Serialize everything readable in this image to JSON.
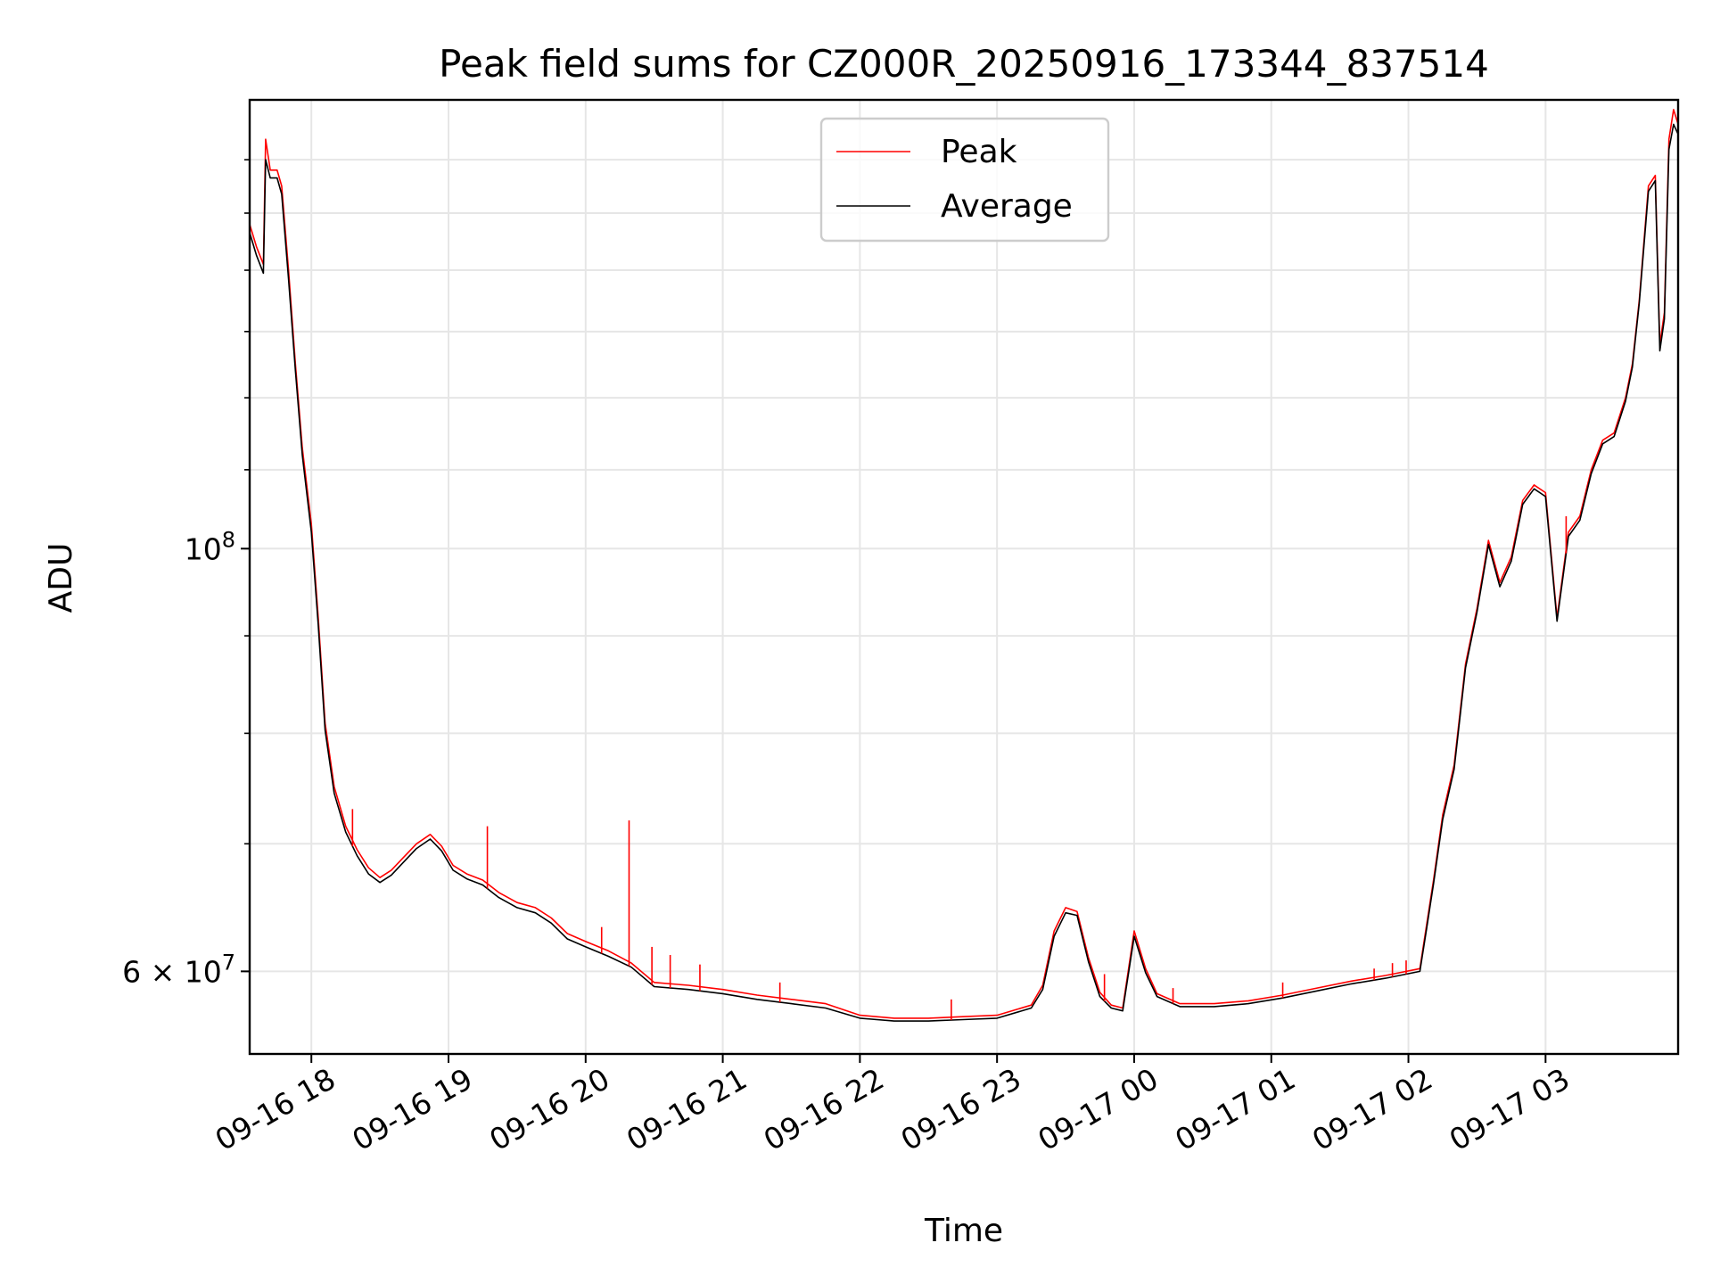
{
  "chart_data": {
    "type": "line",
    "title": "Peak field sums for CZ000R_20250916_173344_837514",
    "xlabel": "Time",
    "ylabel": "ADU",
    "yscale": "log",
    "ylim": [
      54300000,
      172000000
    ],
    "xlim": [
      "09-16 17:33",
      "09-17 03:58"
    ],
    "x_ticks": [
      "09-16 18",
      "09-16 19",
      "09-16 20",
      "09-16 21",
      "09-16 22",
      "09-16 23",
      "09-17 00",
      "09-17 01",
      "09-17 02",
      "09-17 03"
    ],
    "y_ticks": [
      {
        "value": 100000000,
        "label": "10",
        "exp": "8"
      },
      {
        "value": 60000000,
        "label": "6 × 10",
        "exp": "7"
      }
    ],
    "grid": true,
    "legend_position": "top-center",
    "colors": {
      "peak": "#ff0000",
      "average": "#000000",
      "grid": "#e6e6e6"
    },
    "series": [
      {
        "name": "Peak",
        "points": [
          [
            "09-16 17:33",
            148000000
          ],
          [
            "09-16 17:36",
            144000000
          ],
          [
            "09-16 17:39",
            141000000
          ],
          [
            "09-16 17:40",
            164000000
          ],
          [
            "09-16 17:42",
            158000000
          ],
          [
            "09-16 17:45",
            158000000
          ],
          [
            "09-16 17:47",
            155000000
          ],
          [
            "09-16 17:50",
            140000000
          ],
          [
            "09-16 17:53",
            125000000
          ],
          [
            "09-16 17:56",
            113000000
          ],
          [
            "09-16 18:00",
            103000000
          ],
          [
            "09-16 18:03",
            92000000
          ],
          [
            "09-16 18:06",
            81000000
          ],
          [
            "09-16 18:10",
            75000000
          ],
          [
            "09-16 18:15",
            71500000
          ],
          [
            "09-16 18:20",
            69500000
          ],
          [
            "09-16 18:25",
            68000000
          ],
          [
            "09-16 18:30",
            67200000
          ],
          [
            "09-16 18:35",
            67800000
          ],
          [
            "09-16 18:40",
            68800000
          ],
          [
            "09-16 18:46",
            70000000
          ],
          [
            "09-16 18:52",
            70800000
          ],
          [
            "09-16 18:57",
            69800000
          ],
          [
            "09-16 19:02",
            68200000
          ],
          [
            "09-16 19:08",
            67500000
          ],
          [
            "09-16 19:15",
            67000000
          ],
          [
            "09-16 19:22",
            66000000
          ],
          [
            "09-16 19:30",
            65200000
          ],
          [
            "09-16 19:38",
            64800000
          ],
          [
            "09-16 19:45",
            64000000
          ],
          [
            "09-16 19:52",
            62800000
          ],
          [
            "09-16 20:00",
            62200000
          ],
          [
            "09-16 20:10",
            61500000
          ],
          [
            "09-16 20:20",
            60600000
          ],
          [
            "09-16 20:30",
            59200000
          ],
          [
            "09-16 20:45",
            59000000
          ],
          [
            "09-16 21:00",
            58700000
          ],
          [
            "09-16 21:15",
            58300000
          ],
          [
            "09-16 21:30",
            58000000
          ],
          [
            "09-16 21:45",
            57700000
          ],
          [
            "09-16 22:00",
            56900000
          ],
          [
            "09-16 22:15",
            56700000
          ],
          [
            "09-16 22:30",
            56700000
          ],
          [
            "09-16 22:45",
            56800000
          ],
          [
            "09-16 23:00",
            56900000
          ],
          [
            "09-16 23:15",
            57600000
          ],
          [
            "09-16 23:20",
            59000000
          ],
          [
            "09-16 23:25",
            63000000
          ],
          [
            "09-16 23:30",
            64800000
          ],
          [
            "09-16 23:35",
            64500000
          ],
          [
            "09-16 23:40",
            61000000
          ],
          [
            "09-16 23:45",
            58500000
          ],
          [
            "09-16 23:50",
            57600000
          ],
          [
            "09-16 23:55",
            57400000
          ],
          [
            "09-17 00:00",
            63000000
          ],
          [
            "09-17 00:05",
            60200000
          ],
          [
            "09-17 00:10",
            58400000
          ],
          [
            "09-17 00:20",
            57700000
          ],
          [
            "09-17 00:35",
            57700000
          ],
          [
            "09-17 00:50",
            57900000
          ],
          [
            "09-17 01:05",
            58300000
          ],
          [
            "09-17 01:20",
            58800000
          ],
          [
            "09-17 01:35",
            59300000
          ],
          [
            "09-17 01:50",
            59700000
          ],
          [
            "09-17 02:05",
            60200000
          ],
          [
            "09-17 02:08",
            63500000
          ],
          [
            "09-17 02:11",
            67000000
          ],
          [
            "09-17 02:15",
            72500000
          ],
          [
            "09-17 02:20",
            77000000
          ],
          [
            "09-17 02:25",
            87000000
          ],
          [
            "09-17 02:30",
            93000000
          ],
          [
            "09-17 02:35",
            101000000
          ],
          [
            "09-17 02:40",
            96000000
          ],
          [
            "09-17 02:45",
            99000000
          ],
          [
            "09-17 02:50",
            106000000
          ],
          [
            "09-17 02:55",
            108000000
          ],
          [
            "09-17 03:00",
            107000000
          ],
          [
            "09-17 03:05",
            92000000
          ],
          [
            "09-17 03:10",
            102000000
          ],
          [
            "09-17 03:15",
            104000000
          ],
          [
            "09-17 03:20",
            110000000
          ],
          [
            "09-17 03:25",
            114000000
          ],
          [
            "09-17 03:30",
            115000000
          ],
          [
            "09-17 03:35",
            120000000
          ],
          [
            "09-17 03:38",
            125000000
          ],
          [
            "09-17 03:41",
            135000000
          ],
          [
            "09-17 03:45",
            155000000
          ],
          [
            "09-17 03:48",
            157000000
          ],
          [
            "09-17 03:50",
            128000000
          ],
          [
            "09-17 03:52",
            133000000
          ],
          [
            "09-17 03:54",
            164000000
          ],
          [
            "09-17 03:56",
            170000000
          ],
          [
            "09-17 03:58",
            167000000
          ]
        ]
      },
      {
        "name": "Average",
        "points": [
          [
            "09-16 17:33",
            146500000
          ],
          [
            "09-16 17:36",
            142500000
          ],
          [
            "09-16 17:39",
            139500000
          ],
          [
            "09-16 17:40",
            160000000
          ],
          [
            "09-16 17:42",
            156500000
          ],
          [
            "09-16 17:45",
            156500000
          ],
          [
            "09-16 17:47",
            153500000
          ],
          [
            "09-16 17:50",
            138500000
          ],
          [
            "09-16 17:53",
            124000000
          ],
          [
            "09-16 17:56",
            112000000
          ],
          [
            "09-16 18:00",
            102000000
          ],
          [
            "09-16 18:03",
            91200000
          ],
          [
            "09-16 18:06",
            80300000
          ],
          [
            "09-16 18:10",
            74400000
          ],
          [
            "09-16 18:15",
            71000000
          ],
          [
            "09-16 18:20",
            69000000
          ],
          [
            "09-16 18:25",
            67500000
          ],
          [
            "09-16 18:30",
            66800000
          ],
          [
            "09-16 18:35",
            67400000
          ],
          [
            "09-16 18:40",
            68400000
          ],
          [
            "09-16 18:46",
            69600000
          ],
          [
            "09-16 18:52",
            70400000
          ],
          [
            "09-16 18:57",
            69400000
          ],
          [
            "09-16 19:02",
            67800000
          ],
          [
            "09-16 19:08",
            67100000
          ],
          [
            "09-16 19:15",
            66600000
          ],
          [
            "09-16 19:22",
            65600000
          ],
          [
            "09-16 19:30",
            64800000
          ],
          [
            "09-16 19:38",
            64400000
          ],
          [
            "09-16 19:45",
            63600000
          ],
          [
            "09-16 19:52",
            62400000
          ],
          [
            "09-16 20:00",
            61800000
          ],
          [
            "09-16 20:10",
            61100000
          ],
          [
            "09-16 20:20",
            60300000
          ],
          [
            "09-16 20:30",
            58900000
          ],
          [
            "09-16 20:45",
            58700000
          ],
          [
            "09-16 21:00",
            58400000
          ],
          [
            "09-16 21:15",
            58000000
          ],
          [
            "09-16 21:30",
            57700000
          ],
          [
            "09-16 21:45",
            57400000
          ],
          [
            "09-16 22:00",
            56700000
          ],
          [
            "09-16 22:15",
            56500000
          ],
          [
            "09-16 22:30",
            56500000
          ],
          [
            "09-16 22:45",
            56600000
          ],
          [
            "09-16 23:00",
            56700000
          ],
          [
            "09-16 23:15",
            57400000
          ],
          [
            "09-16 23:20",
            58700000
          ],
          [
            "09-16 23:25",
            62600000
          ],
          [
            "09-16 23:30",
            64400000
          ],
          [
            "09-16 23:35",
            64200000
          ],
          [
            "09-16 23:40",
            60700000
          ],
          [
            "09-16 23:45",
            58200000
          ],
          [
            "09-16 23:50",
            57400000
          ],
          [
            "09-16 23:55",
            57200000
          ],
          [
            "09-17 00:00",
            62600000
          ],
          [
            "09-17 00:05",
            59900000
          ],
          [
            "09-17 00:10",
            58200000
          ],
          [
            "09-17 00:20",
            57500000
          ],
          [
            "09-17 00:35",
            57500000
          ],
          [
            "09-17 00:50",
            57700000
          ],
          [
            "09-17 01:05",
            58100000
          ],
          [
            "09-17 01:20",
            58600000
          ],
          [
            "09-17 01:35",
            59100000
          ],
          [
            "09-17 01:50",
            59500000
          ],
          [
            "09-17 02:05",
            60000000
          ],
          [
            "09-17 02:08",
            63200000
          ],
          [
            "09-17 02:11",
            66700000
          ],
          [
            "09-17 02:15",
            72100000
          ],
          [
            "09-17 02:20",
            76600000
          ],
          [
            "09-17 02:25",
            86600000
          ],
          [
            "09-17 02:30",
            92600000
          ],
          [
            "09-17 02:35",
            100500000
          ],
          [
            "09-17 02:40",
            95500000
          ],
          [
            "09-17 02:45",
            98500000
          ],
          [
            "09-17 02:50",
            105500000
          ],
          [
            "09-17 02:55",
            107500000
          ],
          [
            "09-17 03:00",
            106500000
          ],
          [
            "09-17 03:05",
            91600000
          ],
          [
            "09-17 03:10",
            101500000
          ],
          [
            "09-17 03:15",
            103500000
          ],
          [
            "09-17 03:20",
            109500000
          ],
          [
            "09-17 03:25",
            113500000
          ],
          [
            "09-17 03:30",
            114500000
          ],
          [
            "09-17 03:35",
            119500000
          ],
          [
            "09-17 03:38",
            124500000
          ],
          [
            "09-17 03:41",
            134500000
          ],
          [
            "09-17 03:45",
            154000000
          ],
          [
            "09-17 03:48",
            156000000
          ],
          [
            "09-17 03:50",
            127000000
          ],
          [
            "09-17 03:52",
            132000000
          ],
          [
            "09-17 03:54",
            162000000
          ],
          [
            "09-17 03:56",
            167000000
          ],
          [
            "09-17 03:58",
            165000000
          ]
        ]
      }
    ],
    "spikes_peak": [
      [
        "09-16 18:18",
        73000000
      ],
      [
        "09-16 19:17",
        71500000
      ],
      [
        "09-16 20:07",
        63300000
      ],
      [
        "09-16 20:19",
        72000000
      ],
      [
        "09-16 20:29",
        61800000
      ],
      [
        "09-16 20:37",
        61200000
      ],
      [
        "09-16 20:50",
        60500000
      ],
      [
        "09-16 21:25",
        59200000
      ],
      [
        "09-16 22:40",
        58000000
      ],
      [
        "09-16 23:47",
        59800000
      ],
      [
        "09-17 00:17",
        58800000
      ],
      [
        "09-17 01:05",
        59200000
      ],
      [
        "09-17 01:45",
        60200000
      ],
      [
        "09-17 01:53",
        60600000
      ],
      [
        "09-17 01:59",
        60800000
      ],
      [
        "09-17 03:09",
        104000000
      ]
    ]
  }
}
